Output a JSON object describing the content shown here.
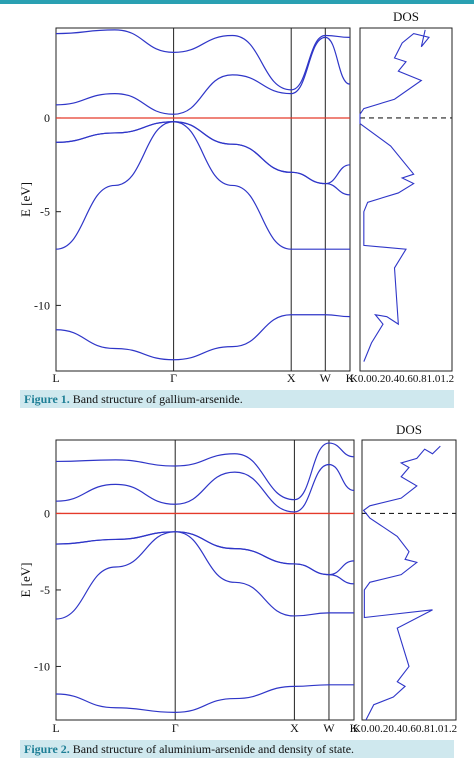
{
  "accent_color": "#2aa0b2",
  "caption_bg": "#cfe8ee",
  "band_color": "#2f36c8",
  "fermi_color": "#e53a2a",
  "figures": [
    {
      "caption_label": "Figure 1.",
      "caption_text": " Band structure of gallium-arsenide."
    },
    {
      "caption_label": "Figure 2.",
      "caption_text": " Band structure of aluminium-arsenide and density of state."
    }
  ],
  "chart_data": [
    {
      "type": "line",
      "ylabel": "E [eV]",
      "ylim": [
        -13.5,
        4.8
      ],
      "yticks": [
        0,
        -5,
        -10
      ],
      "kpoints": [
        "L",
        "Γ",
        "X",
        "W",
        "K"
      ],
      "kpos": [
        0,
        1,
        2,
        2.29,
        2.5
      ],
      "fermi_level": 0,
      "bands": [
        {
          "x": [
            0,
            0.5,
            1,
            1.5,
            2,
            2.29,
            2.5
          ],
          "y": [
            -11.3,
            -12.3,
            -12.9,
            -12.2,
            -10.5,
            -10.5,
            -10.6
          ]
        },
        {
          "x": [
            0,
            0.5,
            1,
            1.5,
            2,
            2.29,
            2.5
          ],
          "y": [
            -7.0,
            -3.6,
            -0.2,
            -3.6,
            -7.0,
            -7.0,
            -7.0
          ]
        },
        {
          "x": [
            0,
            0.5,
            1,
            1.5,
            2,
            2.29,
            2.5
          ],
          "y": [
            -1.3,
            -0.8,
            -0.2,
            -1.4,
            -2.9,
            -3.5,
            -4.1
          ]
        },
        {
          "x": [
            0,
            0.5,
            1,
            1.5,
            2,
            2.29,
            2.5
          ],
          "y": [
            -1.3,
            -0.8,
            -0.2,
            -1.4,
            -2.9,
            -3.5,
            -2.5
          ]
        },
        {
          "x": [
            0,
            0.5,
            1,
            1.5,
            2,
            2.29,
            2.5
          ],
          "y": [
            0.7,
            1.3,
            0.2,
            2.3,
            1.3,
            4.3,
            1.8
          ]
        },
        {
          "x": [
            0,
            0.5,
            1,
            1.5,
            2,
            2.29,
            2.5
          ],
          "y": [
            4.5,
            4.7,
            3.5,
            4.4,
            1.5,
            4.4,
            4.3
          ]
        }
      ],
      "dos": {
        "title": "DOS",
        "xlabel": "K0.00.20.40.60.81.01.2",
        "x": [
          0.05,
          0.15,
          0.3,
          0.2,
          0.35,
          0.5,
          0.45,
          0.6,
          0.05,
          0.05,
          0.1,
          0.5,
          0.7,
          0.55,
          0.7,
          0.4,
          0.0,
          0.0,
          0.05,
          0.45,
          0.8,
          0.5,
          0.6,
          0.45,
          0.55,
          0.7,
          0.9,
          0.8,
          0.85
        ],
        "y": [
          -13.0,
          -12.0,
          -11.0,
          -10.5,
          -10.6,
          -11.0,
          -8.0,
          -7.0,
          -6.8,
          -5.0,
          -4.5,
          -4.0,
          -3.5,
          -3.2,
          -3.0,
          -1.5,
          -0.3,
          0.2,
          0.5,
          1.0,
          2.0,
          2.5,
          3.0,
          3.2,
          4.0,
          4.5,
          4.3,
          3.8,
          4.7
        ]
      }
    },
    {
      "type": "line",
      "ylabel": "E [eV]",
      "ylim": [
        -13.5,
        4.8
      ],
      "yticks": [
        0,
        -5,
        -10
      ],
      "kpoints": [
        "L",
        "Γ",
        "X",
        "W",
        "K"
      ],
      "kpos": [
        0,
        1,
        2,
        2.29,
        2.5
      ],
      "fermi_level": 0,
      "bands": [
        {
          "x": [
            0,
            0.5,
            1,
            1.5,
            2,
            2.29,
            2.5
          ],
          "y": [
            -11.8,
            -12.7,
            -13.0,
            -12.1,
            -11.3,
            -11.2,
            -11.2
          ]
        },
        {
          "x": [
            0,
            0.5,
            1,
            1.5,
            2,
            2.29,
            2.5
          ],
          "y": [
            -6.9,
            -3.5,
            -1.2,
            -4.5,
            -6.7,
            -6.5,
            -6.5
          ]
        },
        {
          "x": [
            0,
            0.5,
            1,
            1.5,
            2,
            2.29,
            2.5
          ],
          "y": [
            -2.0,
            -1.7,
            -1.2,
            -2.3,
            -3.3,
            -4.0,
            -4.6
          ]
        },
        {
          "x": [
            0,
            0.5,
            1,
            1.5,
            2,
            2.29,
            2.5
          ],
          "y": [
            -2.0,
            -1.7,
            -1.2,
            -2.3,
            -3.3,
            -4.0,
            -3.1
          ]
        },
        {
          "x": [
            0,
            0.5,
            1,
            1.5,
            2,
            2.29,
            2.5
          ],
          "y": [
            0.8,
            1.9,
            0.6,
            2.7,
            0.1,
            3.2,
            1.5
          ]
        },
        {
          "x": [
            0,
            0.5,
            1,
            1.5,
            2,
            2.29,
            2.5
          ],
          "y": [
            3.4,
            3.5,
            3.1,
            3.9,
            0.9,
            4.6,
            3.7
          ]
        }
      ],
      "dos": {
        "title": "DOS",
        "xlabel": "K0.00.20.40.60.81.01.2",
        "x": [
          0.05,
          0.15,
          0.4,
          0.55,
          0.45,
          0.6,
          0.45,
          0.9,
          0.03,
          0.03,
          0.1,
          0.5,
          0.7,
          0.55,
          0.6,
          0.45,
          0.1,
          0.02,
          0.1,
          0.5,
          0.7,
          0.5,
          0.6,
          0.5,
          0.7,
          0.8,
          0.9,
          1.0
        ],
        "y": [
          -13.5,
          -12.5,
          -12.0,
          -11.3,
          -11.0,
          -10.0,
          -7.5,
          -6.3,
          -6.8,
          -5.0,
          -4.5,
          -4.0,
          -3.2,
          -3.0,
          -2.5,
          -1.5,
          -0.3,
          0.2,
          0.5,
          1.0,
          1.8,
          2.4,
          3.0,
          3.3,
          3.6,
          4.2,
          3.9,
          4.4
        ]
      }
    }
  ]
}
